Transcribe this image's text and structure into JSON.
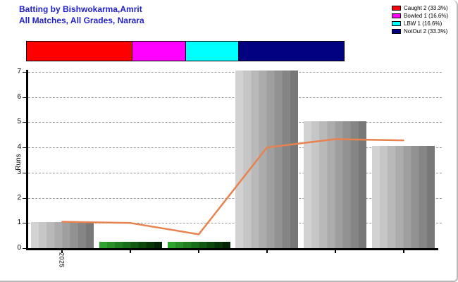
{
  "header": {
    "title": "Batting by Bishwokarma,Amrit",
    "subtitle": "All Matches, All Grades, Narara",
    "title_color": "#2222cc"
  },
  "legend": {
    "position": "top-right",
    "items": [
      {
        "label": "Caught 2 (33.3%)",
        "color": "#ff0000"
      },
      {
        "label": "Bowled 1 (16.6%)",
        "color": "#ff00ff"
      },
      {
        "label": "LBW 1 (16.6%)",
        "color": "#00ffff"
      },
      {
        "label": "NotOut 2 (33.3%)",
        "color": "#000080"
      }
    ]
  },
  "dismissal_bar": {
    "segments": [
      {
        "name": "Caught",
        "percent": 33.3,
        "color": "#ff0000"
      },
      {
        "name": "Bowled",
        "percent": 16.6,
        "color": "#ff00ff"
      },
      {
        "name": "LBW",
        "percent": 16.6,
        "color": "#00ffff"
      },
      {
        "name": "NotOut",
        "percent": 33.3,
        "color": "#000080"
      }
    ]
  },
  "chart_data": {
    "type": "bar",
    "title": "Batting by Bishwokarma,Amrit",
    "subtitle": "All Matches, All Grades, Narara",
    "xlabel": "",
    "ylabel": "Runs",
    "ylim": [
      0,
      7
    ],
    "yticks": [
      0,
      1,
      2,
      3,
      4,
      5,
      6,
      7
    ],
    "grid": "horizontal-dashed",
    "grid_color": "#999999",
    "x_tick_labels": [
      "2025",
      "",
      "",
      "",
      "",
      ""
    ],
    "bars": [
      {
        "runs": 1,
        "display_height": 1.05,
        "style": "out-gray"
      },
      {
        "runs": 0,
        "display_height": 0.25,
        "style": "notout-green"
      },
      {
        "runs": 0,
        "display_height": 0.25,
        "style": "notout-green"
      },
      {
        "runs": 7,
        "display_height": 7.05,
        "style": "out-gray"
      },
      {
        "runs": 5,
        "display_height": 5.05,
        "style": "out-gray"
      },
      {
        "runs": 4,
        "display_height": 4.05,
        "style": "out-gray"
      }
    ],
    "bar_styles": {
      "out-gray": {
        "bands": [
          "#d2d2d2",
          "#c6c6c6",
          "#b9b9b9",
          "#acacac",
          "#9f9f9f",
          "#929292",
          "#858585",
          "#787878"
        ]
      },
      "notout-green": {
        "bands": [
          "#2ea22e",
          "#279027",
          "#207e20",
          "#196c19",
          "#125a12",
          "#0c470c",
          "#073507",
          "#042304"
        ]
      }
    },
    "line_series": {
      "name": "running-average",
      "color": "#e8824e",
      "values": [
        1.05,
        1.0,
        0.55,
        4.0,
        4.33,
        4.28
      ]
    }
  }
}
